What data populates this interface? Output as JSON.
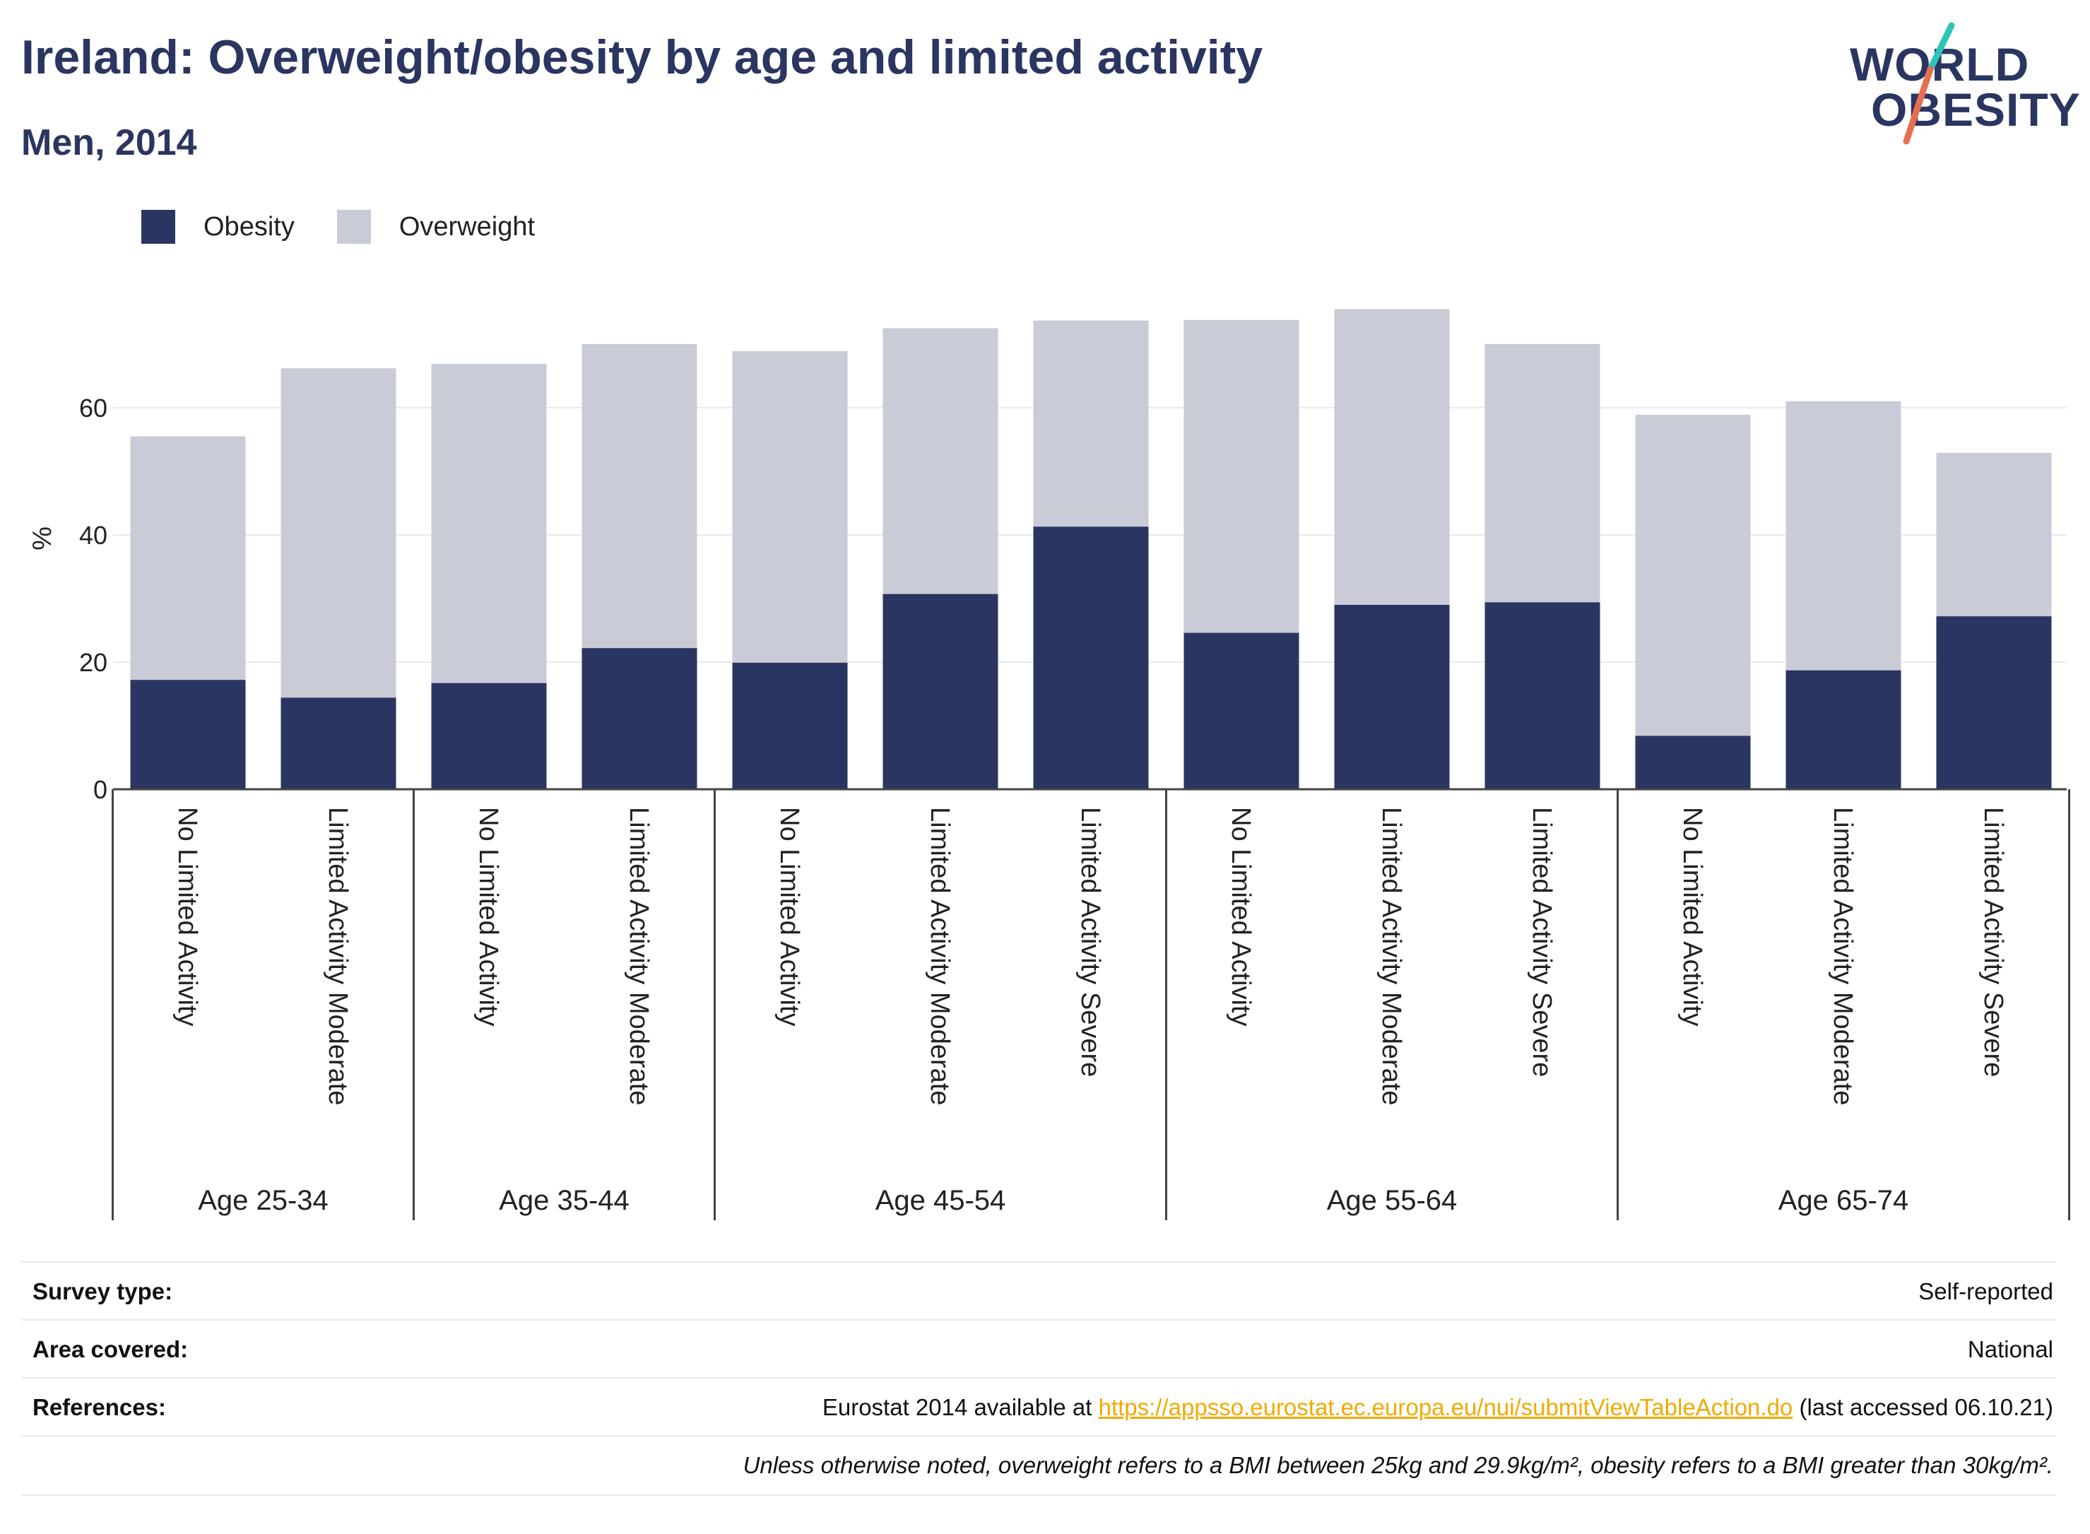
{
  "title": "Ireland: Overweight/obesity by age and limited activity",
  "subtitle": "Men, 2014",
  "logo": {
    "line1": "WORLD",
    "line2": "OBESITY"
  },
  "colors": {
    "obesity": "#2a3561",
    "overweight": "#c9cbd7",
    "title": "#2a3561",
    "link": "#f2a900",
    "logo_accent_teal": "#2ec4b6",
    "logo_accent_red": "#e76f51"
  },
  "legend": {
    "obesity": "Obesity",
    "overweight": "Overweight"
  },
  "chart_data": {
    "type": "bar",
    "stacked": true,
    "ylabel": "%",
    "ylim": [
      0,
      80
    ],
    "yticks": [
      0,
      20,
      40,
      60
    ],
    "grid": true,
    "legend_position": "top-left",
    "groups": [
      {
        "label": "Age 25-34",
        "categories": [
          "No Limited Activity",
          "Limited Activity Moderate"
        ]
      },
      {
        "label": "Age 35-44",
        "categories": [
          "No Limited Activity",
          "Limited Activity Moderate"
        ]
      },
      {
        "label": "Age 45-54",
        "categories": [
          "No Limited Activity",
          "Limited Activity Moderate",
          "Limited Activity Severe"
        ]
      },
      {
        "label": "Age 55-64",
        "categories": [
          "No Limited Activity",
          "Limited Activity Moderate",
          "Limited Activity Severe"
        ]
      },
      {
        "label": "Age 65-74",
        "categories": [
          "No Limited Activity",
          "Limited Activity Moderate",
          "Limited Activity Severe"
        ]
      }
    ],
    "series": [
      {
        "name": "Obesity",
        "values": [
          17.2,
          14.4,
          16.7,
          22.2,
          19.9,
          30.7,
          41.3,
          24.6,
          29.0,
          29.4,
          8.4,
          18.7,
          27.2
        ]
      },
      {
        "name": "Overweight",
        "values": [
          38.3,
          51.8,
          50.2,
          47.8,
          49.0,
          41.8,
          32.4,
          49.2,
          46.5,
          40.6,
          50.5,
          42.3,
          25.7
        ]
      }
    ]
  },
  "meta": {
    "survey_label": "Survey type:",
    "survey_value": "Self-reported",
    "area_label": "Area covered:",
    "area_value": "National",
    "references_label": "References:",
    "references_prefix": "Eurostat 2014 available at ",
    "references_link": "https://appsso.eurostat.ec.europa.eu/nui/submitViewTableAction.do",
    "references_suffix": " (last accessed 06.10.21)",
    "note": "Unless otherwise noted, overweight refers to a BMI between 25kg and 29.9kg/m², obesity refers to a BMI greater than 30kg/m²."
  }
}
